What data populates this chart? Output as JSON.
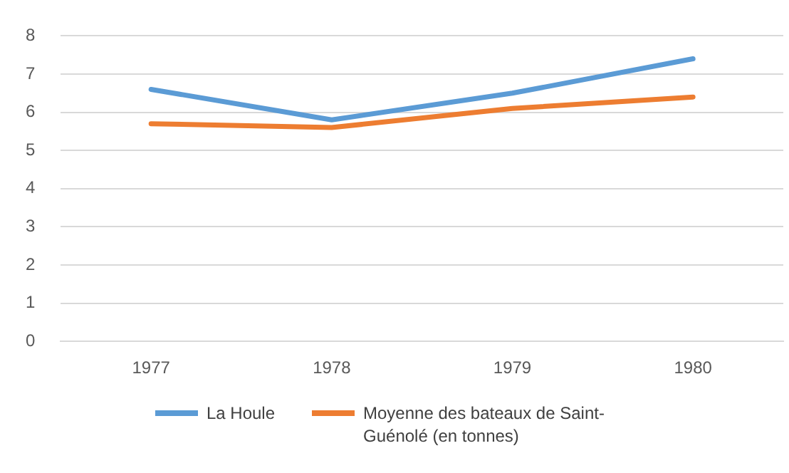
{
  "chart_data": {
    "type": "line",
    "categories": [
      "1977",
      "1978",
      "1979",
      "1980"
    ],
    "series": [
      {
        "name": "La Houle",
        "color": "#5b9bd5",
        "values": [
          6.6,
          5.8,
          6.5,
          7.4
        ]
      },
      {
        "name": "Moyenne des bateaux de Saint-Guénolé (en tonnes)",
        "color": "#ed7d31",
        "values": [
          5.7,
          5.6,
          6.1,
          6.4
        ]
      }
    ],
    "ylim": [
      0,
      8
    ],
    "yticks": [
      0,
      1,
      2,
      3,
      4,
      5,
      6,
      7,
      8
    ],
    "grid": "y",
    "legend": "bottom",
    "marker": "none",
    "line_style": "solid"
  }
}
